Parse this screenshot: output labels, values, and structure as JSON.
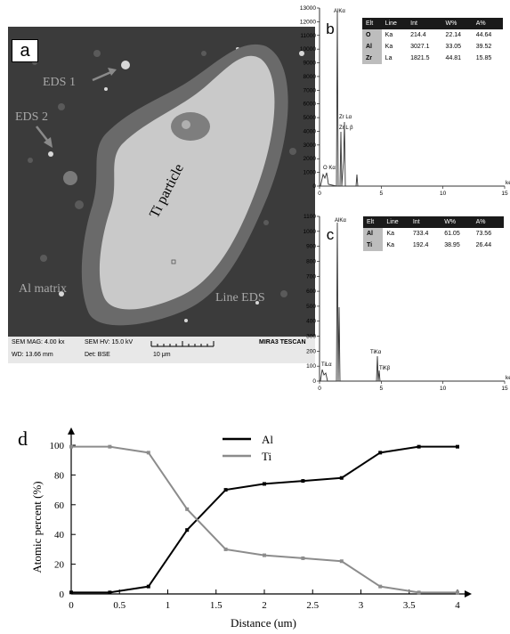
{
  "panel_a": {
    "letter": "a",
    "labels": {
      "eds1": "EDS 1",
      "eds2": "EDS 2",
      "particle": "Ti particle",
      "matrix": "Al matrix",
      "line_eds": "Line EDS"
    },
    "info": {
      "sem_mag": "SEM MAG: 4.00 kx",
      "sem_hv": "SEM HV: 15.0 kV",
      "wd": "WD: 13.66 mm",
      "det": "Det: BSE",
      "scale": "10 μm",
      "brand": "MIRA3 TESCAN"
    }
  },
  "panel_b": {
    "letter": "b",
    "y_ticks": [
      "13000",
      "12000",
      "11000",
      "10000",
      "9000",
      "8000",
      "7000",
      "6000",
      "5000",
      "4000",
      "3000",
      "2000",
      "1000",
      "0"
    ],
    "x_ticks": [
      "0",
      "5",
      "10",
      "15"
    ],
    "unit": "ke",
    "peaks": {
      "alka": "AlKα",
      "zrlb": "Zr L β",
      "zrla": "Zr Lα",
      "oka": "O Kα"
    },
    "table": {
      "headers": [
        "Elt",
        "Line",
        "Int",
        "W%",
        "A%"
      ],
      "rows": [
        [
          "O",
          "Ka",
          "214.4",
          "22.14",
          "44.64"
        ],
        [
          "Al",
          "Ka",
          "3027.1",
          "33.05",
          "39.52"
        ],
        [
          "Zr",
          "La",
          "1821.5",
          "44.81",
          "15.85"
        ]
      ]
    }
  },
  "panel_c": {
    "letter": "c",
    "y_ticks": [
      "1100",
      "1000",
      "900",
      "800",
      "700",
      "600",
      "500",
      "400",
      "300",
      "200",
      "100",
      "0"
    ],
    "x_ticks": [
      "0",
      "5",
      "10",
      "15"
    ],
    "unit": "ke",
    "peaks": {
      "alka": "AlKα",
      "tila": "TiLα",
      "tika": "TiKα",
      "tikb": "TiKβ"
    },
    "table": {
      "headers": [
        "Elt",
        "Line",
        "Int",
        "W%",
        "A%"
      ],
      "rows": [
        [
          "Al",
          "Ka",
          "733.4",
          "61.05",
          "73.56"
        ],
        [
          "Ti",
          "Ka",
          "192.4",
          "38.95",
          "26.44"
        ]
      ]
    }
  },
  "chart_data": {
    "type": "line",
    "panel_letter": "d",
    "xlabel": "Distance (um)",
    "ylabel": "Atomic percent (%)",
    "xlim": [
      0,
      4
    ],
    "ylim": [
      0,
      100
    ],
    "x_ticks": [
      "0",
      "0.5",
      "1",
      "1.5",
      "2",
      "2.5",
      "3",
      "3.5",
      "4"
    ],
    "y_ticks": [
      "0",
      "20",
      "40",
      "60",
      "80",
      "100"
    ],
    "legend_position": "top-center",
    "series": [
      {
        "name": "Al",
        "color": "#000000",
        "x": [
          0,
          0.4,
          0.8,
          1.2,
          1.6,
          2.0,
          2.4,
          2.8,
          3.2,
          3.6,
          4.0
        ],
        "y": [
          1,
          1,
          5,
          43,
          70,
          74,
          76,
          78,
          95,
          99,
          99
        ]
      },
      {
        "name": "Ti",
        "color": "#8c8c8c",
        "x": [
          0,
          0.4,
          0.8,
          1.2,
          1.6,
          2.0,
          2.4,
          2.8,
          3.2,
          3.6,
          4.0
        ],
        "y": [
          99,
          99,
          95,
          57,
          30,
          26,
          24,
          22,
          5,
          1,
          1
        ]
      }
    ]
  }
}
